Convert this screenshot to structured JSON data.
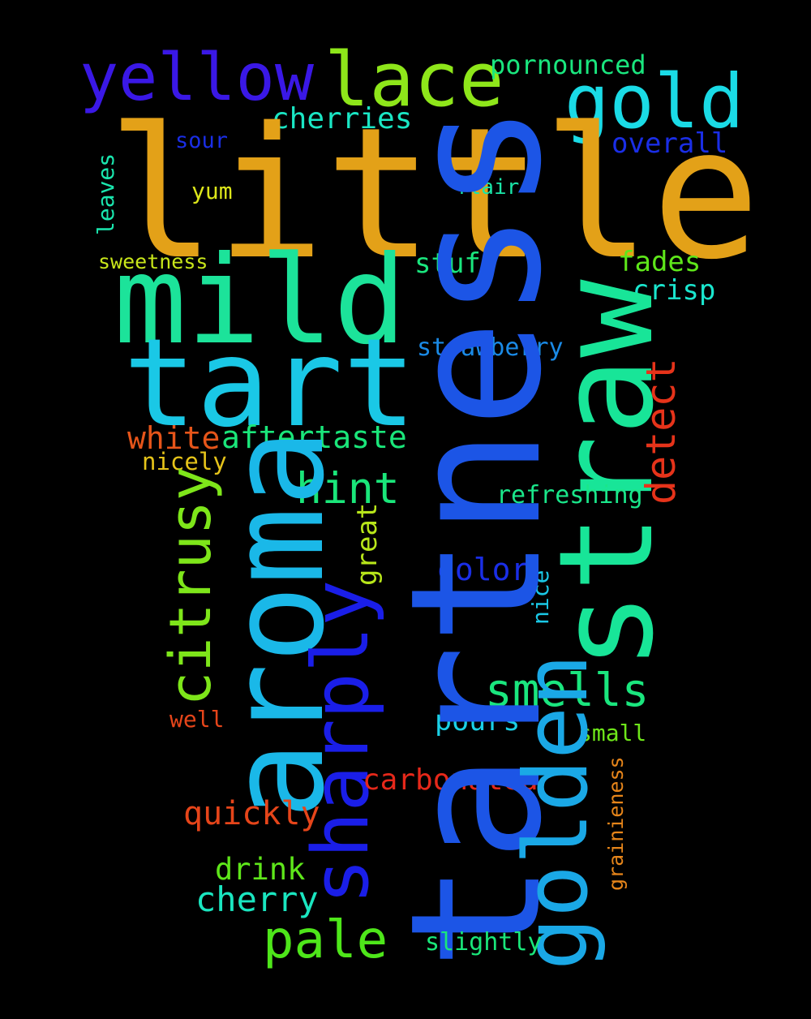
{
  "words": {
    "little": {
      "text": "little",
      "color": "#e3a118"
    },
    "tartness": {
      "text": "tartness",
      "color": "#1c55e6"
    },
    "straw": {
      "text": "straw",
      "color": "#18e598"
    },
    "aroma": {
      "text": "aroma",
      "color": "#1ab8e8"
    },
    "mild": {
      "text": "mild",
      "color": "#1ce39a"
    },
    "tart": {
      "text": "tart",
      "color": "#1ac8e6"
    },
    "sharply": {
      "text": "sharply",
      "color": "#1a1ee8"
    },
    "golden": {
      "text": "golden",
      "color": "#1aa8e6"
    },
    "yellow": {
      "text": "yellow",
      "color": "#3a18e6"
    },
    "lace": {
      "text": "lace",
      "color": "#8ee61a"
    },
    "gold": {
      "text": "gold",
      "color": "#1adbe6"
    },
    "citrusy": {
      "text": "citrusy",
      "color": "#7ee61a"
    },
    "pale": {
      "text": "pale",
      "color": "#4ee61a"
    },
    "smells": {
      "text": "smells",
      "color": "#1ae67e"
    },
    "hint": {
      "text": "hint",
      "color": "#1ae67a"
    },
    "detect": {
      "text": "detect",
      "color": "#e6331a"
    },
    "pornounced": {
      "text": "pornounced",
      "color": "#1ae67e"
    },
    "cherries": {
      "text": "cherries",
      "color": "#1ae6c4"
    },
    "sour": {
      "text": "sour",
      "color": "#1a2ee6"
    },
    "overall": {
      "text": "overall",
      "color": "#1a2ee6"
    },
    "flair": {
      "text": "flair",
      "color": "#1ae6a8"
    },
    "yum": {
      "text": "yum",
      "color": "#dce61a"
    },
    "leaves": {
      "text": "leaves",
      "color": "#1ae6ae"
    },
    "sweetness": {
      "text": "sweetness",
      "color": "#c8e61a"
    },
    "stuff": {
      "text": "stuff",
      "color": "#1ae67e"
    },
    "fades": {
      "text": "fades",
      "color": "#5ee61a"
    },
    "crisp": {
      "text": "crisp",
      "color": "#1ae6ce"
    },
    "strawberry": {
      "text": "strawberry",
      "color": "#1a8ae6"
    },
    "white": {
      "text": "white",
      "color": "#e6551a"
    },
    "aftertaste": {
      "text": "aftertaste",
      "color": "#1ae67a"
    },
    "nicely": {
      "text": "nicely",
      "color": "#e6c41a"
    },
    "refreshing": {
      "text": "refreshing",
      "color": "#1ae68a"
    },
    "great": {
      "text": "great",
      "color": "#b8e61a"
    },
    "color": {
      "text": "color",
      "color": "#1a2ee6"
    },
    "nice": {
      "text": "nice",
      "color": "#1ac8e6"
    },
    "well": {
      "text": "well",
      "color": "#e6451a"
    },
    "pours": {
      "text": "pours",
      "color": "#1ad0e6"
    },
    "small": {
      "text": "small",
      "color": "#6ee61a"
    },
    "grainieness": {
      "text": "grainieness",
      "color": "#e6851a"
    },
    "carbonated": {
      "text": "carbonated",
      "color": "#e6281a"
    },
    "quickly": {
      "text": "quickly",
      "color": "#e6451a"
    },
    "drink": {
      "text": "drink",
      "color": "#5ee61a"
    },
    "cherry": {
      "text": "cherry",
      "color": "#1ae6c0"
    },
    "slightly": {
      "text": "slightly",
      "color": "#1ae67a"
    }
  }
}
